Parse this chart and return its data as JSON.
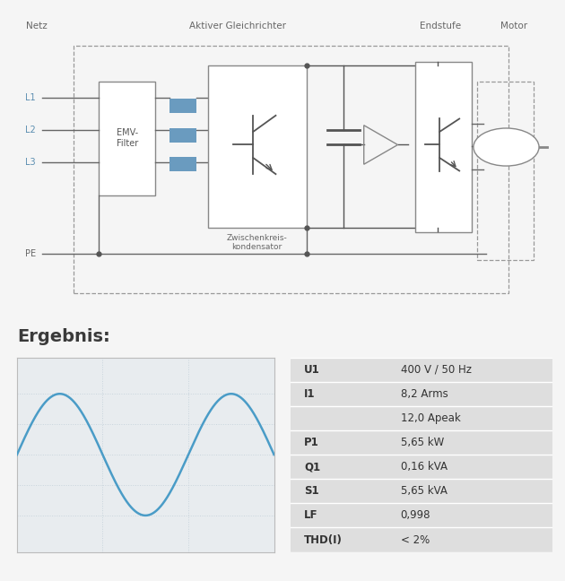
{
  "bg_color": "#f5f5f5",
  "blue_line": "#4a9cc7",
  "grid_color": "#c8d4dc",
  "wave_bg": "#e8ecef",
  "text_color": "#333333",
  "label_color": "#555555",
  "table_bg": "#dedede",
  "dashed_border": "#999999",
  "blue_fill": "#6a9bbf",
  "ergebnis_title": "Ergebnis:",
  "table_data": [
    {
      "label": "U1",
      "value": "400 V / 50 Hz"
    },
    {
      "label": "I1",
      "value": "8,2 Arms"
    },
    {
      "label": "",
      "value": "12,0 Apeak"
    },
    {
      "label": "P1",
      "value": "5,65 kW"
    },
    {
      "label": "Q1",
      "value": "0,16 kVA"
    },
    {
      "label": "S1",
      "value": "5,65 kVA"
    },
    {
      "label": "LF",
      "value": "0,998"
    },
    {
      "label": "THD(I)",
      "value": "< 2%"
    }
  ],
  "netz_label": "Netz",
  "aktiver_label": "Aktiver Gleichrichter",
  "endstufe_label": "Endstufe",
  "motor_label": "Motor",
  "emv_label": "EMV-\nFilter",
  "zwisch_label": "Zwischenkreis-\nkondensator",
  "L1": "L1",
  "L2": "L2",
  "L3": "L3",
  "PE": "PE"
}
